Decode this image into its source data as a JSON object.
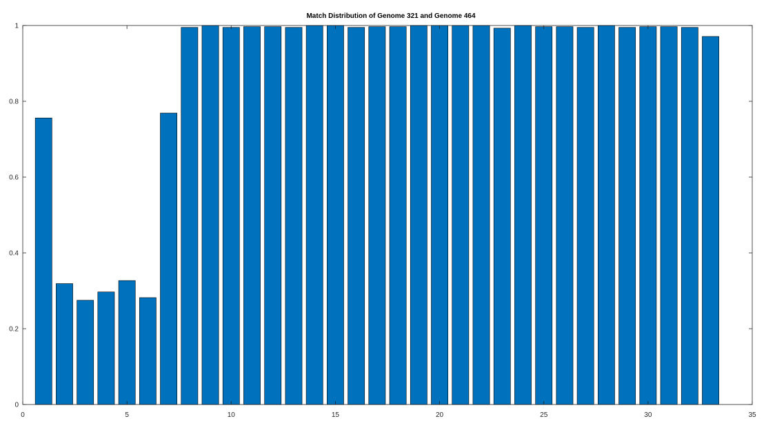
{
  "chart_data": {
    "type": "bar",
    "title": "Match Distribution of Genome 321 and Genome 464",
    "xlabel": "",
    "ylabel": "",
    "x": [
      1,
      2,
      3,
      4,
      5,
      6,
      7,
      8,
      9,
      10,
      11,
      12,
      13,
      14,
      15,
      16,
      17,
      18,
      19,
      20,
      21,
      22,
      23,
      24,
      25,
      26,
      27,
      28,
      29,
      30,
      31,
      32,
      33
    ],
    "values": [
      0.756,
      0.319,
      0.275,
      0.297,
      0.327,
      0.282,
      0.769,
      0.995,
      1.0,
      0.995,
      0.997,
      0.997,
      0.995,
      1.0,
      1.0,
      0.995,
      0.997,
      0.997,
      1.0,
      1.0,
      1.0,
      1.0,
      0.993,
      1.0,
      0.997,
      0.997,
      0.995,
      1.0,
      0.995,
      0.997,
      0.997,
      0.995,
      0.971
    ],
    "xlim": [
      0,
      35
    ],
    "ylim": [
      0,
      1
    ],
    "xticks": [
      0,
      5,
      10,
      15,
      20,
      25,
      30,
      35
    ],
    "xtick_labels": [
      "0",
      "5",
      "10",
      "15",
      "20",
      "25",
      "30",
      "35"
    ],
    "yticks": [
      0,
      0.2,
      0.4,
      0.6,
      0.8,
      1
    ],
    "ytick_labels": [
      "0",
      "0.2",
      "0.4",
      "0.6",
      "0.8",
      "1"
    ],
    "grid": false,
    "bar_color": "#0072BD",
    "bar_edge_color": "#000000"
  }
}
